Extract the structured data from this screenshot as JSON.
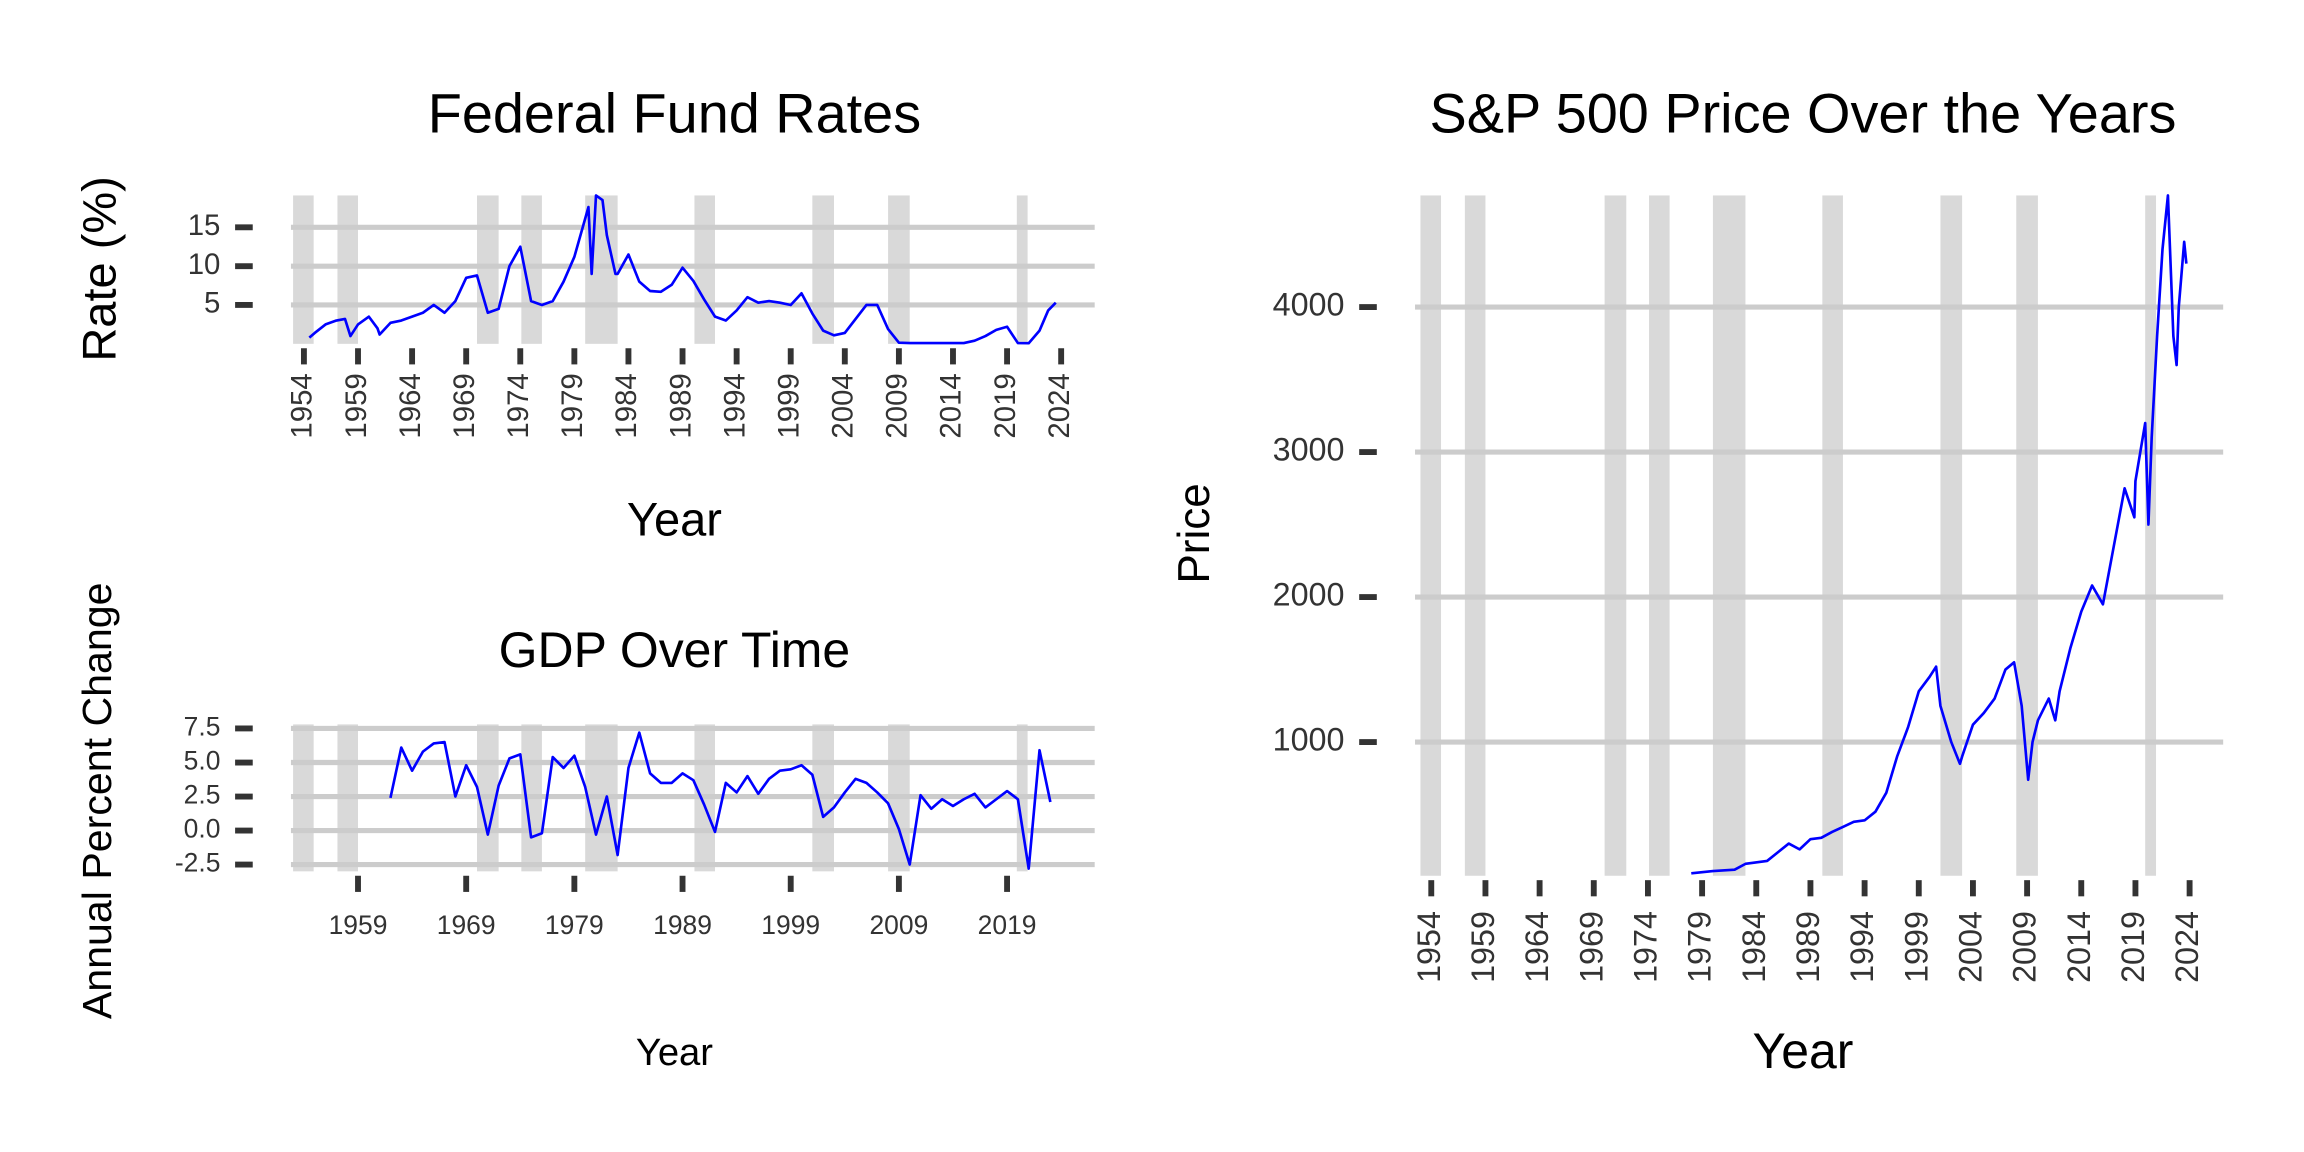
{
  "chart_data": [
    {
      "type": "line",
      "title": "Federal Fund Rates",
      "x_label": "Year",
      "y_label": "Rate (%)",
      "color": "#0000ff",
      "shade_color": "#d9d9d9",
      "grid": true,
      "x": [
        1954.5,
        1955,
        1956,
        1957,
        1957.8,
        1958.3,
        1959,
        1960,
        1960.8,
        1961,
        1962,
        1963,
        1964,
        1965,
        1966,
        1967,
        1968,
        1969,
        1970,
        1971,
        1972,
        1973,
        1974,
        1975,
        1976,
        1977,
        1978,
        1979,
        1980.3,
        1980.6,
        1981,
        1981.6,
        1982,
        1982.8,
        1983,
        1984,
        1985,
        1986,
        1987,
        1988,
        1989,
        1990,
        1991,
        1992,
        1993,
        1994,
        1995,
        1996,
        1997,
        1998,
        1999,
        2000,
        2001,
        2002,
        2003,
        2004,
        2005,
        2006,
        2007,
        2008,
        2009,
        2010,
        2011,
        2012,
        2013,
        2014,
        2015,
        2016,
        2017,
        2018,
        2019,
        2020,
        2021,
        2022,
        2022.8,
        2023.5
      ],
      "values": [
        0.8,
        1.4,
        2.5,
        3.0,
        3.2,
        1.0,
        2.5,
        3.5,
        2.0,
        1.2,
        2.7,
        3.0,
        3.5,
        4.0,
        5.0,
        4.0,
        5.5,
        8.5,
        8.8,
        4.0,
        4.5,
        10.0,
        12.5,
        5.5,
        5.0,
        5.5,
        8.0,
        11.2,
        17.6,
        9.0,
        19.1,
        18.5,
        14.0,
        9.0,
        9.0,
        11.5,
        8.0,
        6.8,
        6.7,
        7.6,
        9.8,
        8.1,
        5.7,
        3.5,
        3.0,
        4.3,
        6.0,
        5.3,
        5.5,
        5.3,
        5.0,
        6.5,
        3.9,
        1.7,
        1.1,
        1.4,
        3.2,
        5.0,
        5.0,
        1.9,
        0.15,
        0.1,
        0.1,
        0.1,
        0.1,
        0.1,
        0.1,
        0.4,
        1.0,
        1.8,
        2.2,
        0.1,
        0.08,
        1.7,
        4.3,
        5.3
      ],
      "shaded_periods": [
        [
          1953,
          1954.9
        ],
        [
          1957.1,
          1959
        ],
        [
          1970,
          1972
        ],
        [
          1974.1,
          1976
        ],
        [
          1980,
          1983
        ],
        [
          1990.1,
          1992
        ],
        [
          2001,
          2003
        ],
        [
          2008,
          2010
        ],
        [
          2019.9,
          2020.9
        ]
      ],
      "xlim": [
        1952.8,
        2027.1
      ],
      "xticks": [
        1954,
        1959,
        1964,
        1969,
        1974,
        1979,
        1984,
        1989,
        1994,
        1999,
        2004,
        2009,
        2014,
        2019,
        2024
      ],
      "ylim": [
        0,
        19.1
      ],
      "yticks": [
        5,
        10,
        15
      ]
    },
    {
      "type": "line",
      "title": "GDP Over Time",
      "x_label": "Year",
      "y_label": "Annual Percent Change",
      "color": "#0000ff",
      "shade_color": "#d9d9d9",
      "grid": true,
      "x": [
        1962,
        1963,
        1964,
        1965,
        1966,
        1967,
        1968,
        1969,
        1970,
        1971,
        1972,
        1973,
        1974,
        1975,
        1976,
        1977,
        1978,
        1979,
        1980,
        1981,
        1982,
        1983,
        1984,
        1985,
        1986,
        1987,
        1988,
        1989,
        1990,
        1991,
        1992,
        1993,
        1994,
        1995,
        1996,
        1997,
        1998,
        1999,
        2000,
        2001,
        2002,
        2003,
        2004,
        2005,
        2006,
        2007,
        2008,
        2009,
        2010,
        2011,
        2012,
        2013,
        2014,
        2015,
        2016,
        2017,
        2018,
        2019,
        2020,
        2021,
        2022,
        2023
      ],
      "values": [
        2.4,
        6.1,
        4.4,
        5.8,
        6.4,
        6.5,
        2.5,
        4.8,
        3.2,
        -0.3,
        3.3,
        5.3,
        5.6,
        -0.5,
        -0.2,
        5.4,
        4.6,
        5.5,
        3.2,
        -0.3,
        2.5,
        -1.8,
        4.6,
        7.2,
        4.2,
        3.5,
        3.5,
        4.2,
        3.7,
        1.9,
        -0.1,
        3.5,
        2.8,
        4.0,
        2.7,
        3.8,
        4.4,
        4.5,
        4.8,
        4.1,
        1.0,
        1.7,
        2.8,
        3.8,
        3.5,
        2.8,
        2.0,
        0.1,
        -2.5,
        2.6,
        1.6,
        2.3,
        1.8,
        2.3,
        2.7,
        1.7,
        2.3,
        2.9,
        2.3,
        -2.8,
        5.9,
        2.1
      ],
      "shaded_periods": [
        [
          1953,
          1954.9
        ],
        [
          1957.1,
          1959
        ],
        [
          1970,
          1972
        ],
        [
          1974.1,
          1976
        ],
        [
          1980,
          1983
        ],
        [
          1990.1,
          1992
        ],
        [
          2001,
          2003
        ],
        [
          2008,
          2010
        ],
        [
          2019.9,
          2020.9
        ]
      ],
      "xlim": [
        1952.8,
        2027.1
      ],
      "xticks": [
        1959,
        1969,
        1979,
        1989,
        1999,
        2009,
        2019
      ],
      "ylim": [
        -3.0,
        7.8
      ],
      "yticks": [
        -2.5,
        {
          "value": 0,
          "label": "0.0"
        },
        2.5,
        {
          "value": 5,
          "label": "5.0"
        },
        7.5
      ]
    },
    {
      "type": "line",
      "title": "S&P 500 Price Over the Years",
      "x_label": "Year",
      "y_label": "Price",
      "color": "#0000ff",
      "shade_color": "#d9d9d9",
      "grid": true,
      "x": [
        1978,
        1980,
        1982,
        1983,
        1985,
        1986,
        1987,
        1988,
        1989,
        1990,
        1991,
        1992,
        1993,
        1994,
        1995,
        1996,
        1997,
        1998,
        1999,
        2000,
        2000.6,
        2001,
        2002,
        2002.8,
        2003,
        2004,
        2005,
        2006,
        2007,
        2007.8,
        2008.5,
        2009.1,
        2009.5,
        2010,
        2011,
        2011.6,
        2012,
        2013,
        2014,
        2015,
        2016,
        2017,
        2018,
        2018.9,
        2019,
        2019.9,
        2020.2,
        2020.5,
        2021,
        2021.5,
        2022,
        2022.5,
        2022.8,
        2023,
        2023.5,
        2023.7
      ],
      "values": [
        95,
        110,
        120,
        160,
        180,
        240,
        300,
        260,
        330,
        340,
        380,
        415,
        450,
        460,
        520,
        650,
        900,
        1100,
        1350,
        1450,
        1520,
        1250,
        1000,
        850,
        900,
        1120,
        1200,
        1300,
        1500,
        1550,
        1250,
        740,
        1000,
        1150,
        1300,
        1150,
        1350,
        1650,
        1900,
        2080,
        1950,
        2350,
        2750,
        2550,
        2800,
        3200,
        2500,
        3100,
        3800,
        4400,
        4770,
        3800,
        3600,
        4000,
        4450,
        4300
      ],
      "shaded_periods": [
        [
          1953,
          1954.9
        ],
        [
          1957.1,
          1959
        ],
        [
          1970,
          1972
        ],
        [
          1974.1,
          1976
        ],
        [
          1980,
          1983
        ],
        [
          1990.1,
          1992
        ],
        [
          2001,
          2003
        ],
        [
          2008,
          2010
        ],
        [
          2019.9,
          2020.9
        ]
      ],
      "xlim": [
        1952.5,
        2027.1
      ],
      "xticks": [
        1954,
        1959,
        1964,
        1969,
        1974,
        1979,
        1984,
        1989,
        1994,
        1999,
        2004,
        2009,
        2014,
        2019,
        2024
      ],
      "ylim": [
        78,
        4770
      ],
      "yticks": [
        1000,
        2000,
        3000,
        4000
      ]
    }
  ]
}
